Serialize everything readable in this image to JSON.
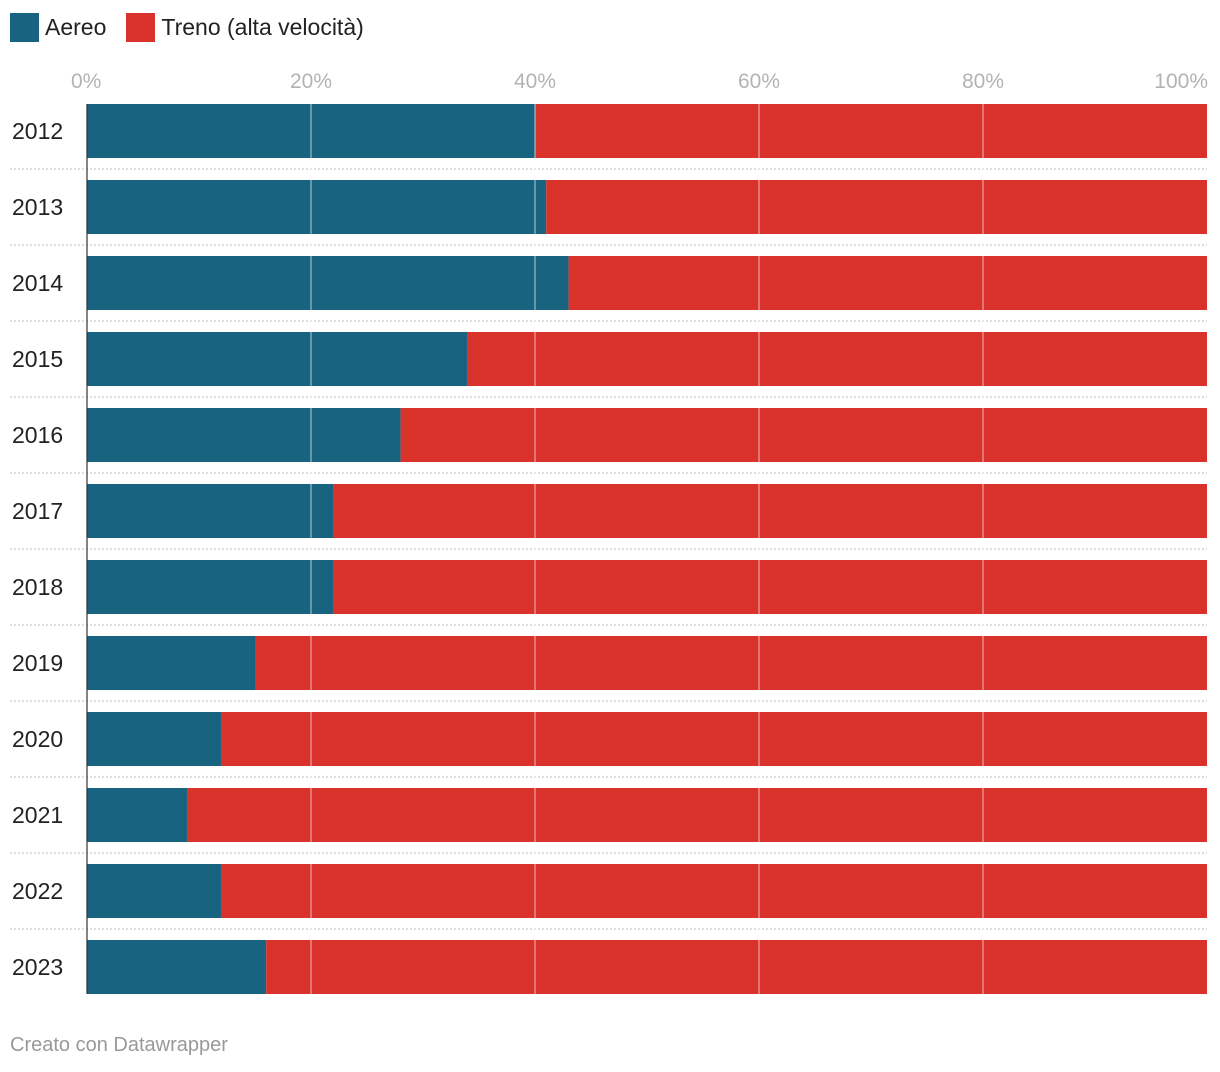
{
  "legend": [
    {
      "label": "Aereo",
      "color": "#186380"
    },
    {
      "label": "Treno (alta velocità)",
      "color": "#d8322b"
    }
  ],
  "footer": {
    "credit": "Creato con Datawrapper"
  },
  "chart_data": {
    "type": "bar",
    "orientation": "horizontal",
    "stacked": true,
    "percent": true,
    "categories": [
      "2012",
      "2013",
      "2014",
      "2015",
      "2016",
      "2017",
      "2018",
      "2019",
      "2020",
      "2021",
      "2022",
      "2023"
    ],
    "series": [
      {
        "name": "Aereo",
        "color": "#186380",
        "values": [
          40,
          41,
          43,
          34,
          28,
          22,
          22,
          15,
          12,
          9,
          12,
          16
        ]
      },
      {
        "name": "Treno (alta velocità)",
        "color": "#d8322b",
        "values": [
          60,
          59,
          57,
          66,
          72,
          78,
          78,
          85,
          88,
          91,
          88,
          84
        ]
      }
    ],
    "xlim": [
      0,
      100
    ],
    "xticks": [
      "0%",
      "20%",
      "40%",
      "60%",
      "80%",
      "100%"
    ],
    "title": "",
    "xlabel": "",
    "ylabel": "",
    "grid": true,
    "legend_position": "top-left"
  }
}
